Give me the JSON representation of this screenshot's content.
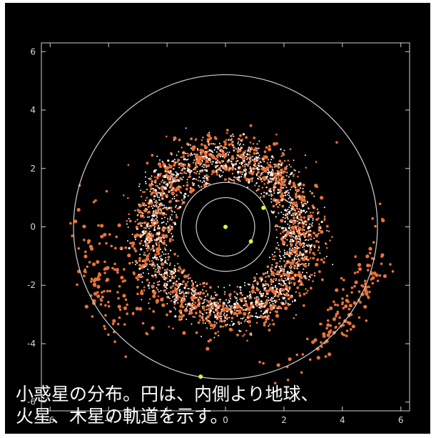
{
  "chart_data": {
    "type": "scatter",
    "title": "",
    "xlabel": "",
    "ylabel": "",
    "xlim": [
      -6.3,
      6.3
    ],
    "ylim": [
      -6.3,
      6.3
    ],
    "x_ticks": [
      -6,
      -4,
      -2,
      0,
      2,
      4,
      6
    ],
    "y_ticks": [
      6,
      4,
      2,
      0,
      -2,
      -4,
      -6
    ],
    "x_tick_labels": [
      "-6",
      "-4",
      "-2",
      "0",
      "2",
      "4",
      "6"
    ],
    "y_tick_labels": [
      "6",
      "4",
      "2",
      "0",
      "-2",
      "-4",
      "-6"
    ],
    "grid": false,
    "orbits": [
      {
        "name": "Earth",
        "radius": 1.0
      },
      {
        "name": "Mars",
        "radius": 1.52
      },
      {
        "name": "Jupiter",
        "radius": 5.2
      }
    ],
    "planets": [
      {
        "name": "Sun",
        "x": 0.0,
        "y": 0.0
      },
      {
        "name": "Earth",
        "x": 0.87,
        "y": -0.5
      },
      {
        "name": "Mars",
        "x": 1.3,
        "y": 0.65
      },
      {
        "name": "Jupiter",
        "x": -0.85,
        "y": -5.13
      }
    ],
    "series": [
      {
        "name": "",
        "color": "#e8733a",
        "distribution": "asteroid main belt, r 1.8-3.5 AU plus Trojan clusters near Jupiter"
      },
      {
        "name": "",
        "color": "#ffffff",
        "distribution": "asteroid main belt, r 1.8-3.5 AU"
      }
    ]
  },
  "caption": {
    "line1": "小惑星の分布。円は、内側より地球、",
    "line2": "火星、木星の軌道を示す。"
  },
  "colors": {
    "background": "#000000",
    "orbit": "#d0d0d0",
    "planet": "#e8f040",
    "asteroid_orange": "#e8733a",
    "asteroid_white": "#ffffff",
    "axis": "#d0d0d0"
  }
}
